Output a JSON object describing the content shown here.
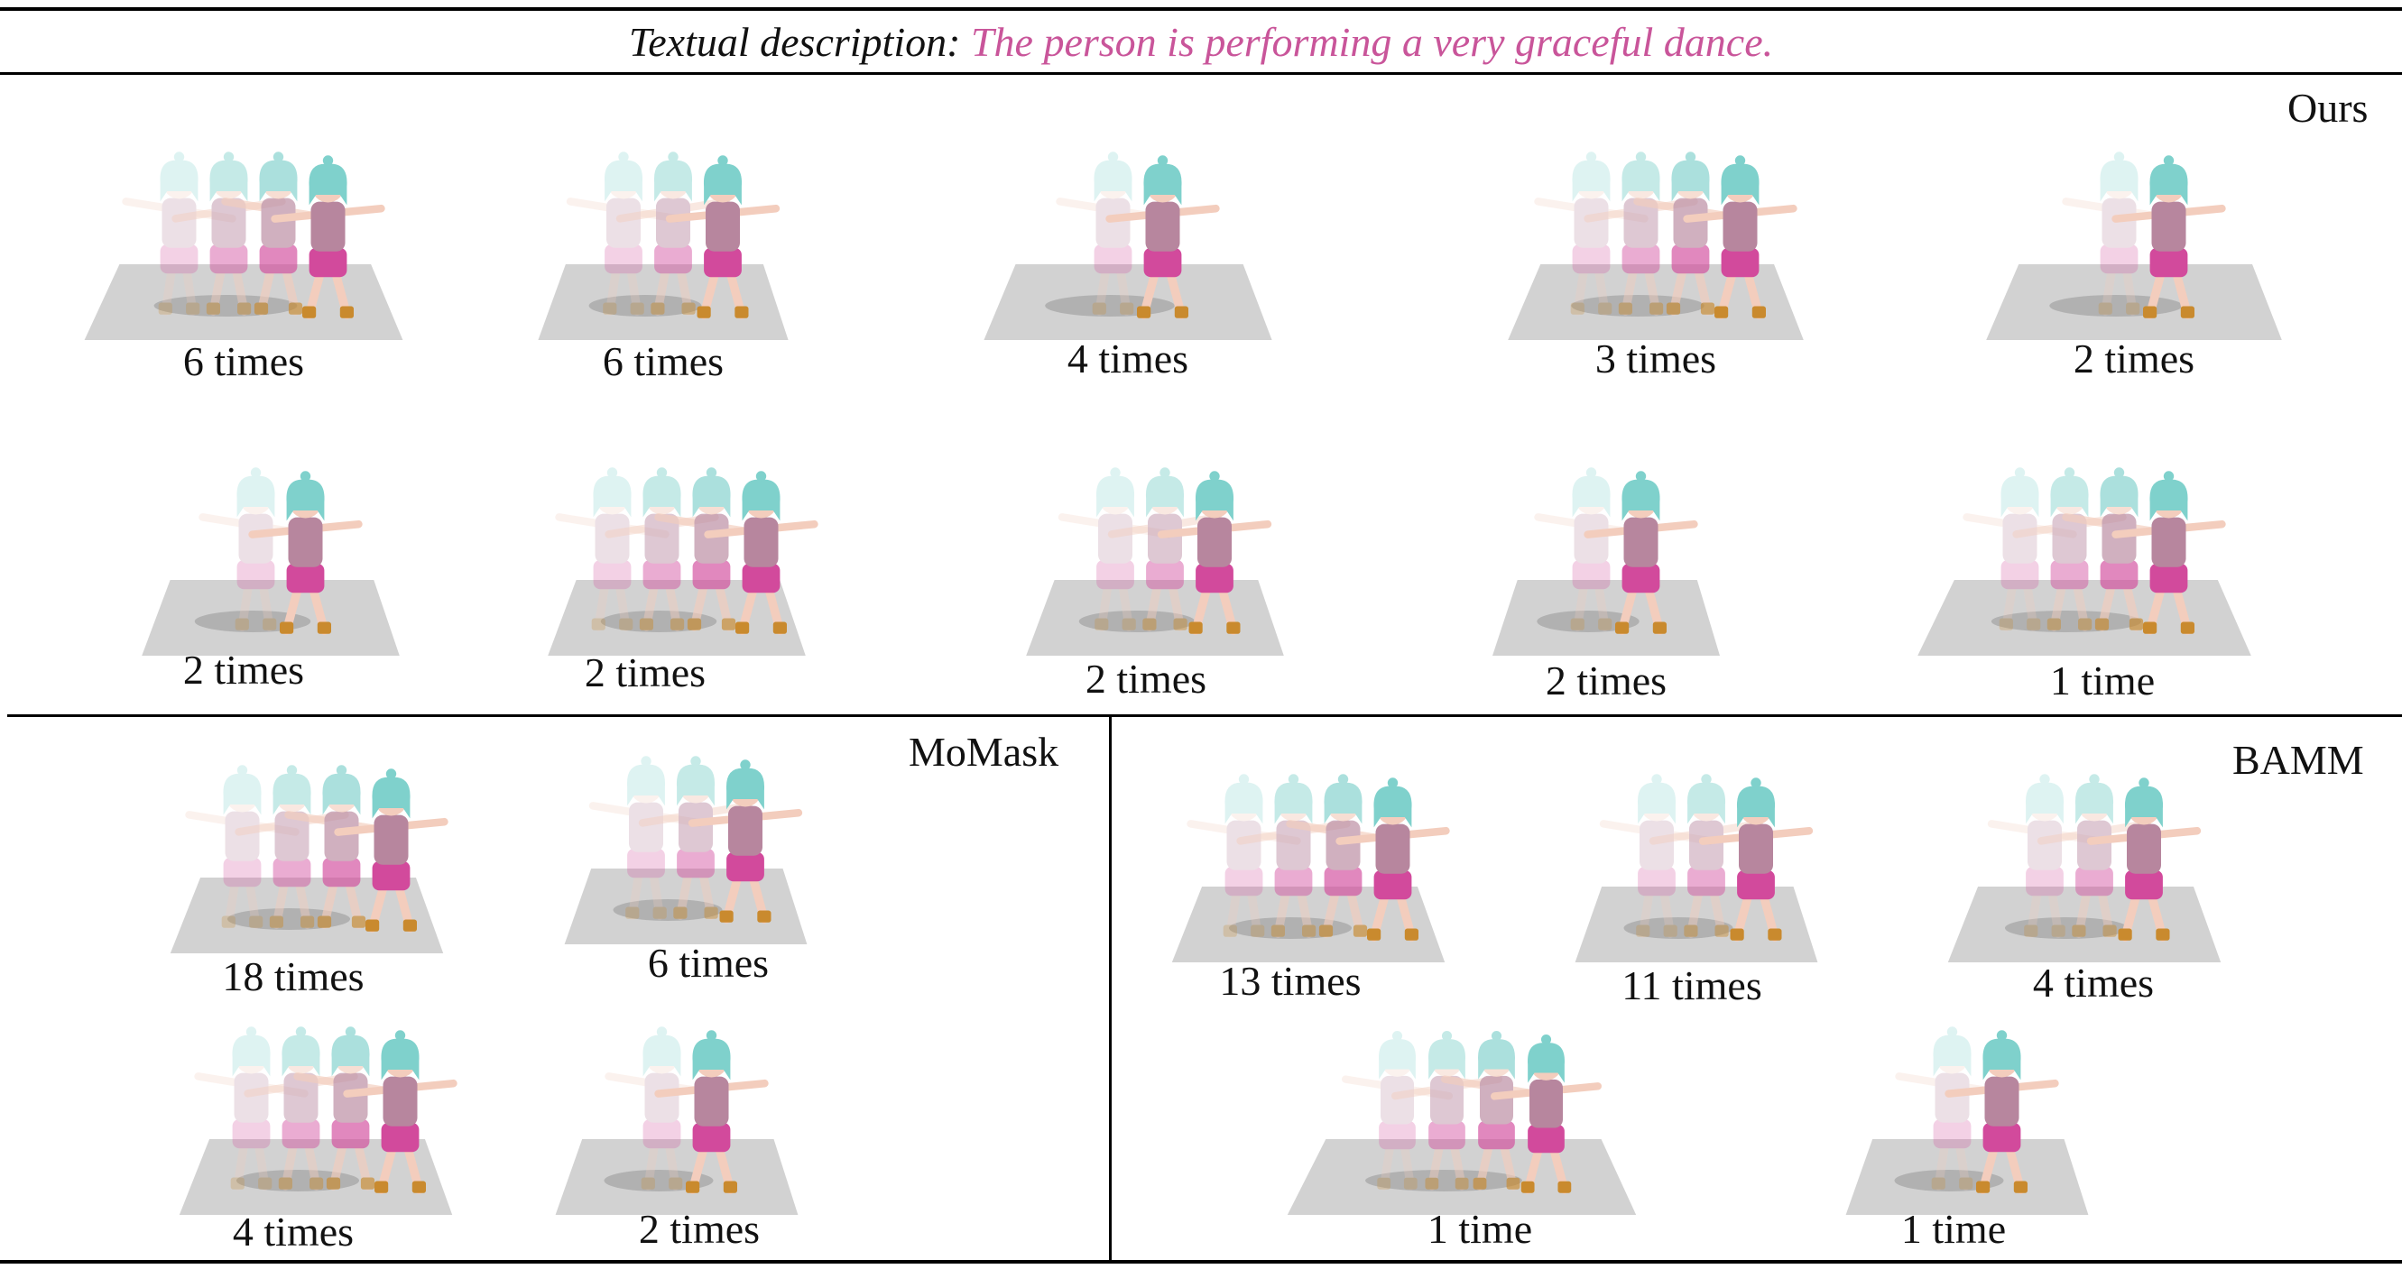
{
  "caption": {
    "prefix": "Textual description:",
    "text": "The person is performing a very graceful dance."
  },
  "methods": {
    "ours": "Ours",
    "momask": "MoMask",
    "bamm": "BAMM"
  },
  "colors": {
    "hair": "#7fd1cc",
    "shirt": "#b7869e",
    "shorts": "#d24a9c",
    "skin": "#f3cdbd",
    "boots": "#c98a2e",
    "floor": "#d2d2d2",
    "shadow": "#8a8a8a",
    "caption_accent": "#c9559a"
  },
  "ours": [
    {
      "label": "6 times",
      "ghosts": 3
    },
    {
      "label": "6 times",
      "ghosts": 2
    },
    {
      "label": "4 times",
      "ghosts": 1
    },
    {
      "label": "3 times",
      "ghosts": 3
    },
    {
      "label": "2 times",
      "ghosts": 1
    },
    {
      "label": "2 times",
      "ghosts": 1
    },
    {
      "label": "2 times",
      "ghosts": 3
    },
    {
      "label": "2 times",
      "ghosts": 2
    },
    {
      "label": "2 times",
      "ghosts": 1
    },
    {
      "label": "1 time",
      "ghosts": 3
    }
  ],
  "momask": [
    {
      "label": "18 times",
      "ghosts": 3
    },
    {
      "label": "6 times",
      "ghosts": 2
    },
    {
      "label": "4 times",
      "ghosts": 3
    },
    {
      "label": "2 times",
      "ghosts": 1
    }
  ],
  "bamm": [
    {
      "label": "13 times",
      "ghosts": 3
    },
    {
      "label": "11 times",
      "ghosts": 2
    },
    {
      "label": "4 times",
      "ghosts": 2
    },
    {
      "label": "1 time",
      "ghosts": 3
    },
    {
      "label": "1 time",
      "ghosts": 1
    }
  ]
}
